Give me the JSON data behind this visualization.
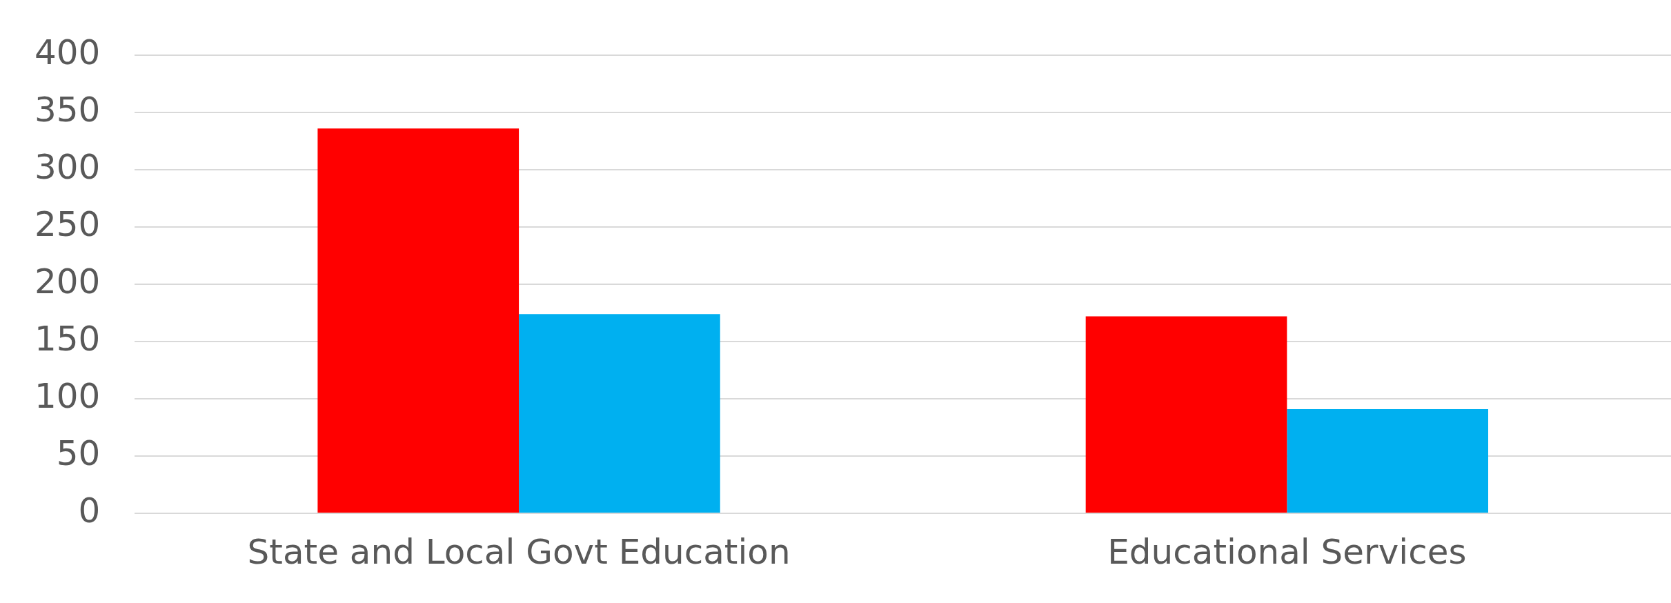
{
  "chart_data": {
    "type": "bar",
    "categories": [
      "State and Local Govt Education",
      "Educational Services"
    ],
    "series": [
      {
        "color": "#ff0000",
        "values": [
          336,
          172
        ]
      },
      {
        "color": "#00b0f0",
        "values": [
          174,
          91
        ]
      }
    ],
    "ylim": [
      0,
      400
    ],
    "yticks": [
      0,
      50,
      100,
      150,
      200,
      250,
      300,
      350,
      400
    ],
    "grid": "y",
    "legend": false
  }
}
